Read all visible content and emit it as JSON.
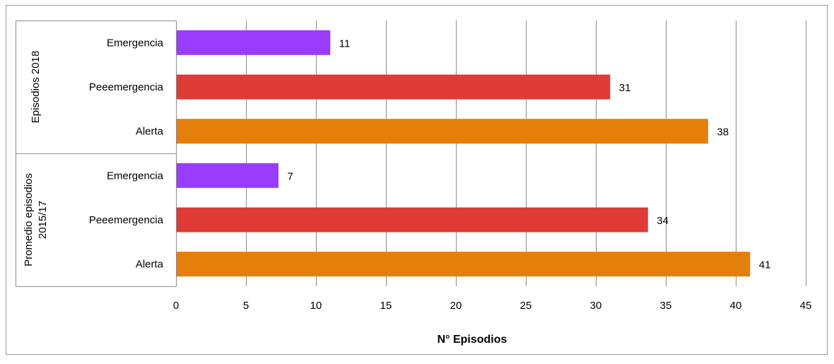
{
  "chart_data": {
    "type": "bar",
    "orientation": "horizontal",
    "title": "",
    "xlabel": "N° Episodios",
    "ylabel": "",
    "xlim": [
      0,
      45
    ],
    "x_ticks": [
      0,
      5,
      10,
      15,
      20,
      25,
      30,
      35,
      40,
      45
    ],
    "grid": "vertical",
    "legend": "none",
    "groups": [
      {
        "name": "Episodios 2018",
        "bars": [
          {
            "category": "Emergencia",
            "value": 11,
            "label": "11",
            "color": "#9a3cff"
          },
          {
            "category": "Peeemergencia",
            "value": 31,
            "label": "31",
            "color": "#de3a36"
          },
          {
            "category": "Alerta",
            "value": 38,
            "label": "38",
            "color": "#e47f0c"
          }
        ]
      },
      {
        "name": "Promedio episodios 2015/17",
        "name_lines": [
          "Promedio episodios",
          "2015/17"
        ],
        "bars": [
          {
            "category": "Emergencia",
            "value": 7.3,
            "label": "7",
            "color": "#9a3cff"
          },
          {
            "category": "Peeemergencia",
            "value": 33.7,
            "label": "34",
            "color": "#de3a36"
          },
          {
            "category": "Alerta",
            "value": 41,
            "label": "41",
            "color": "#e47f0c"
          }
        ]
      }
    ]
  }
}
